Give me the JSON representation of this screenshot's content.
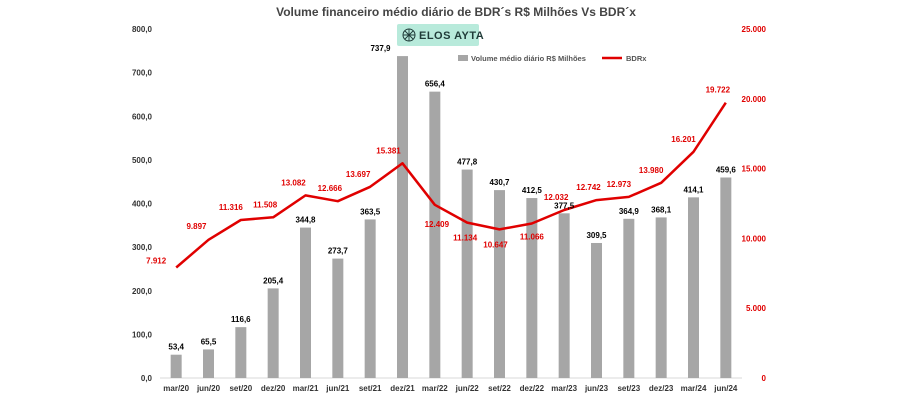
{
  "logo": {
    "text": "ELOS AYTA",
    "bg_color": "#b8eadb"
  },
  "chart_data": {
    "type": "bar",
    "title": "Volume financeiro médio diário de BDR´s R$ Milhões Vs BDR´x",
    "categories": [
      "mar/20",
      "jun/20",
      "set/20",
      "dez/20",
      "mar/21",
      "jun/21",
      "set/21",
      "dez/21",
      "mar/22",
      "jun/22",
      "set/22",
      "dez/22",
      "mar/23",
      "jun/23",
      "set/23",
      "dez/23",
      "mar/24",
      "jun/24"
    ],
    "series": [
      {
        "name": "Volume médio diário R$ Milhões",
        "type": "bar",
        "axis": "left",
        "color": "#a6a6a6",
        "values": [
          53.4,
          65.5,
          116.6,
          205.4,
          344.8,
          273.7,
          363.5,
          737.9,
          656.4,
          477.8,
          430.7,
          412.5,
          377.5,
          309.5,
          364.9,
          368.1,
          414.1,
          459.6
        ],
        "labels": [
          "53,4",
          "65,5",
          "116,6",
          "205,4",
          "344,8",
          "273,7",
          "363,5",
          "737,9",
          "656,4",
          "477,8",
          "430,7",
          "412,5",
          "377,5",
          "309,5",
          "364,9",
          "368,1",
          "414,1",
          "459,6"
        ]
      },
      {
        "name": "BDRx",
        "type": "line",
        "axis": "right",
        "color": "#e00000",
        "values": [
          7912,
          9897,
          11316,
          11508,
          13082,
          12666,
          13697,
          15381,
          12409,
          11134,
          10647,
          11066,
          12032,
          12742,
          12973,
          13980,
          16201,
          19722
        ],
        "labels": [
          "7.912",
          "9.897",
          "11.316",
          "11.508",
          "13.082",
          "12.666",
          "13.697",
          "15.381",
          "12.409",
          "11.134",
          "10.647",
          "11.066",
          "12.032",
          "12.742",
          "12.973",
          "13.980",
          "16.201",
          "19.722"
        ]
      }
    ],
    "left_axis": {
      "ylim": [
        0,
        800
      ],
      "ticks": [
        "0,0",
        "100,0",
        "200,0",
        "300,0",
        "400,0",
        "500,0",
        "600,0",
        "700,0",
        "800,0"
      ]
    },
    "right_axis": {
      "ylim": [
        0,
        25000
      ],
      "ticks": [
        "0",
        "5.000",
        "10.000",
        "15.000",
        "20.000",
        "25.000"
      ]
    },
    "legend": {
      "position": "top-right"
    },
    "grid": false
  }
}
